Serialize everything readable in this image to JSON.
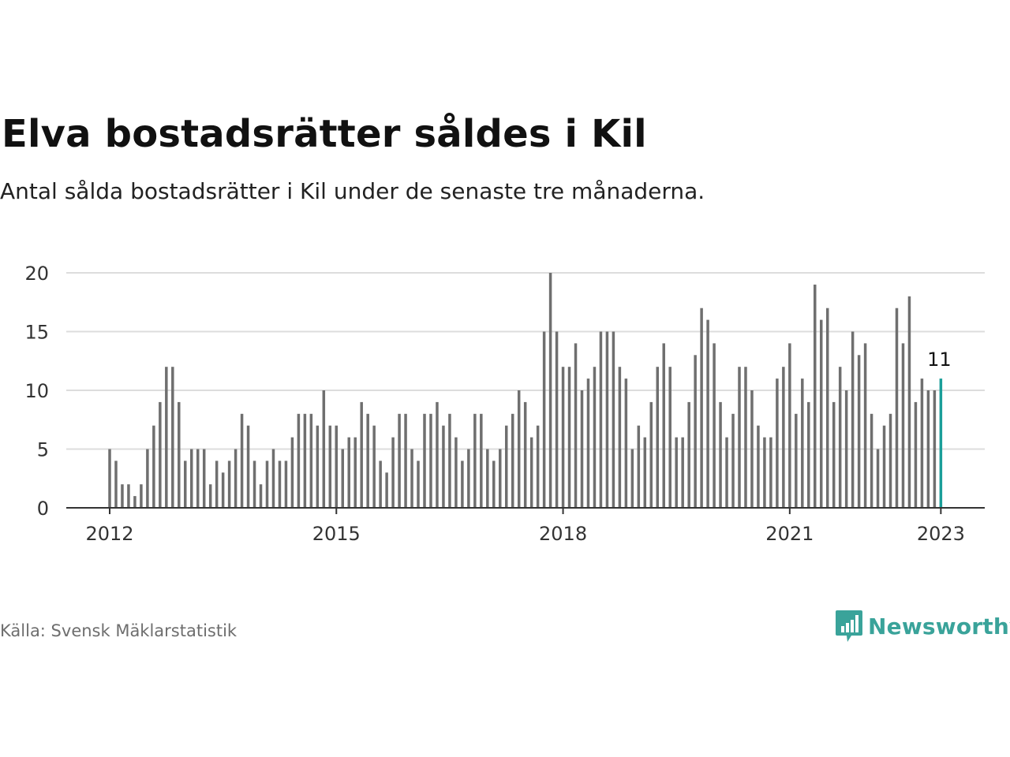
{
  "header": {
    "title": "Elva bostadsrätter såldes i Kil",
    "subtitle": "Antal sålda bostadsrätter i Kil under de senaste tre månaderna."
  },
  "footer": {
    "source": "Källa: Svensk Mäklarstatistik",
    "brand": "Newsworthy"
  },
  "colors": {
    "bar": "#6f6f6f",
    "highlight": "#1a9e99",
    "grid": "#dddddd",
    "axis": "#333333",
    "brand": "#3aa39a"
  },
  "icons": {
    "logo": "bar-chart-speech-bubble-icon"
  },
  "chart_data": {
    "type": "bar",
    "title": "Elva bostadsrätter såldes i Kil",
    "subtitle": "Antal sålda bostadsrätter i Kil under de senaste tre månaderna.",
    "xlabel": "",
    "ylabel": "",
    "ylim": [
      0,
      20
    ],
    "yticks": [
      0,
      5,
      10,
      15,
      20
    ],
    "xticks": [
      "2012",
      "2015",
      "2018",
      "2021",
      "2023"
    ],
    "grid": true,
    "series": [
      {
        "x": [
          "2012-01",
          "2012-02",
          "2012-03",
          "2012-04",
          "2012-05",
          "2012-06",
          "2012-07",
          "2012-08",
          "2012-09",
          "2012-10",
          "2012-11",
          "2012-12",
          "2013-01",
          "2013-02",
          "2013-03",
          "2013-04",
          "2013-05",
          "2013-06",
          "2013-07",
          "2013-08",
          "2013-09",
          "2013-10",
          "2013-11",
          "2013-12",
          "2014-01",
          "2014-02",
          "2014-03",
          "2014-04",
          "2014-05",
          "2014-06",
          "2014-07",
          "2014-08",
          "2014-09",
          "2014-10",
          "2014-11",
          "2014-12",
          "2015-01",
          "2015-02",
          "2015-03",
          "2015-04",
          "2015-05",
          "2015-06",
          "2015-07",
          "2015-08",
          "2015-09",
          "2015-10",
          "2015-11",
          "2015-12",
          "2016-01",
          "2016-02",
          "2016-03",
          "2016-04",
          "2016-05",
          "2016-06",
          "2016-07",
          "2016-08",
          "2016-09",
          "2016-10",
          "2016-11",
          "2016-12",
          "2017-01",
          "2017-02",
          "2017-03",
          "2017-04",
          "2017-05",
          "2017-06",
          "2017-07",
          "2017-08",
          "2017-09",
          "2017-10",
          "2017-11",
          "2017-12",
          "2018-01",
          "2018-02",
          "2018-03",
          "2018-04",
          "2018-05",
          "2018-06",
          "2018-07",
          "2018-08",
          "2018-09",
          "2018-10",
          "2018-11",
          "2018-12",
          "2019-01",
          "2019-02",
          "2019-03",
          "2019-04",
          "2019-05",
          "2019-06",
          "2019-07",
          "2019-08",
          "2019-09",
          "2019-10",
          "2019-11",
          "2019-12",
          "2020-01",
          "2020-02",
          "2020-03",
          "2020-04",
          "2020-05",
          "2020-06",
          "2020-07",
          "2020-08",
          "2020-09",
          "2020-10",
          "2020-11",
          "2020-12",
          "2021-01",
          "2021-02",
          "2021-03",
          "2021-04",
          "2021-05",
          "2021-06",
          "2021-07",
          "2021-08",
          "2021-09",
          "2021-10",
          "2021-11",
          "2021-12",
          "2022-01",
          "2022-02",
          "2022-03",
          "2022-04",
          "2022-05",
          "2022-06",
          "2022-07",
          "2022-08",
          "2022-09",
          "2022-10",
          "2022-11",
          "2022-12",
          "2023-01"
        ],
        "values": [
          5,
          4,
          2,
          2,
          1,
          2,
          5,
          7,
          9,
          12,
          12,
          9,
          4,
          5,
          5,
          5,
          2,
          4,
          3,
          4,
          5,
          8,
          7,
          4,
          2,
          4,
          5,
          4,
          4,
          6,
          8,
          8,
          8,
          7,
          10,
          7,
          7,
          5,
          6,
          6,
          9,
          8,
          7,
          4,
          3,
          6,
          8,
          8,
          5,
          4,
          8,
          8,
          9,
          7,
          8,
          6,
          4,
          5,
          8,
          8,
          5,
          4,
          5,
          7,
          8,
          10,
          9,
          6,
          7,
          15,
          20,
          15,
          12,
          12,
          14,
          10,
          11,
          12,
          15,
          15,
          15,
          12,
          11,
          5,
          7,
          6,
          9,
          12,
          14,
          12,
          6,
          6,
          9,
          13,
          17,
          16,
          14,
          9,
          6,
          8,
          12,
          12,
          10,
          7,
          6,
          6,
          11,
          12,
          14,
          8,
          11,
          9,
          19,
          16,
          17,
          9,
          12,
          10,
          15,
          13,
          14,
          8,
          5,
          7,
          8,
          17,
          14,
          18,
          9,
          11,
          10,
          10,
          11
        ],
        "highlight_last": true
      }
    ],
    "annotations": [
      {
        "x": "2023-01",
        "text": "11"
      }
    ]
  }
}
